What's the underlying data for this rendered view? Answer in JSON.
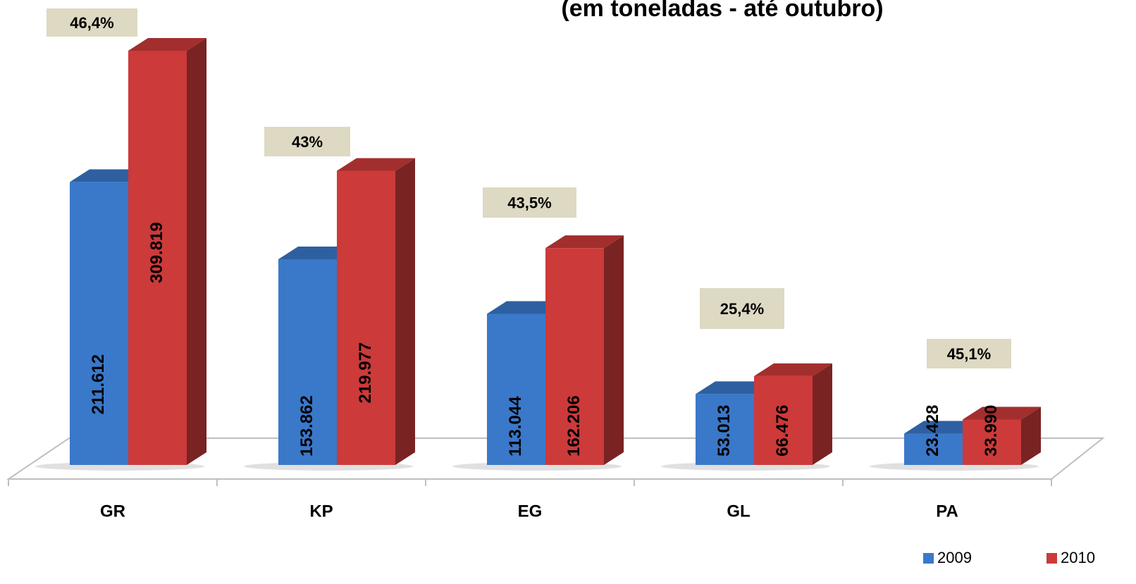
{
  "chart_data": {
    "type": "bar3d",
    "title": "(em toneladas - até outubro)",
    "categories": [
      "GR",
      "KP",
      "EG",
      "GL",
      "PA"
    ],
    "series": [
      {
        "name": "2009",
        "color": "#3a78c9",
        "values": [
          211612,
          153862,
          113044,
          53013,
          23428
        ],
        "value_labels": [
          "211.612",
          "153.862",
          "113.044",
          "53.013",
          "23.428"
        ]
      },
      {
        "name": "2010",
        "color": "#cc3a3a",
        "values": [
          309819,
          219977,
          162206,
          66476,
          33990
        ],
        "value_labels": [
          "309.819",
          "219.977",
          "162.206",
          "66.476",
          "33.990"
        ]
      }
    ],
    "annotations": [
      "46,4%",
      "43%",
      "43,5%",
      "25,4%",
      "45,1%"
    ],
    "legend": "bottom-right"
  }
}
